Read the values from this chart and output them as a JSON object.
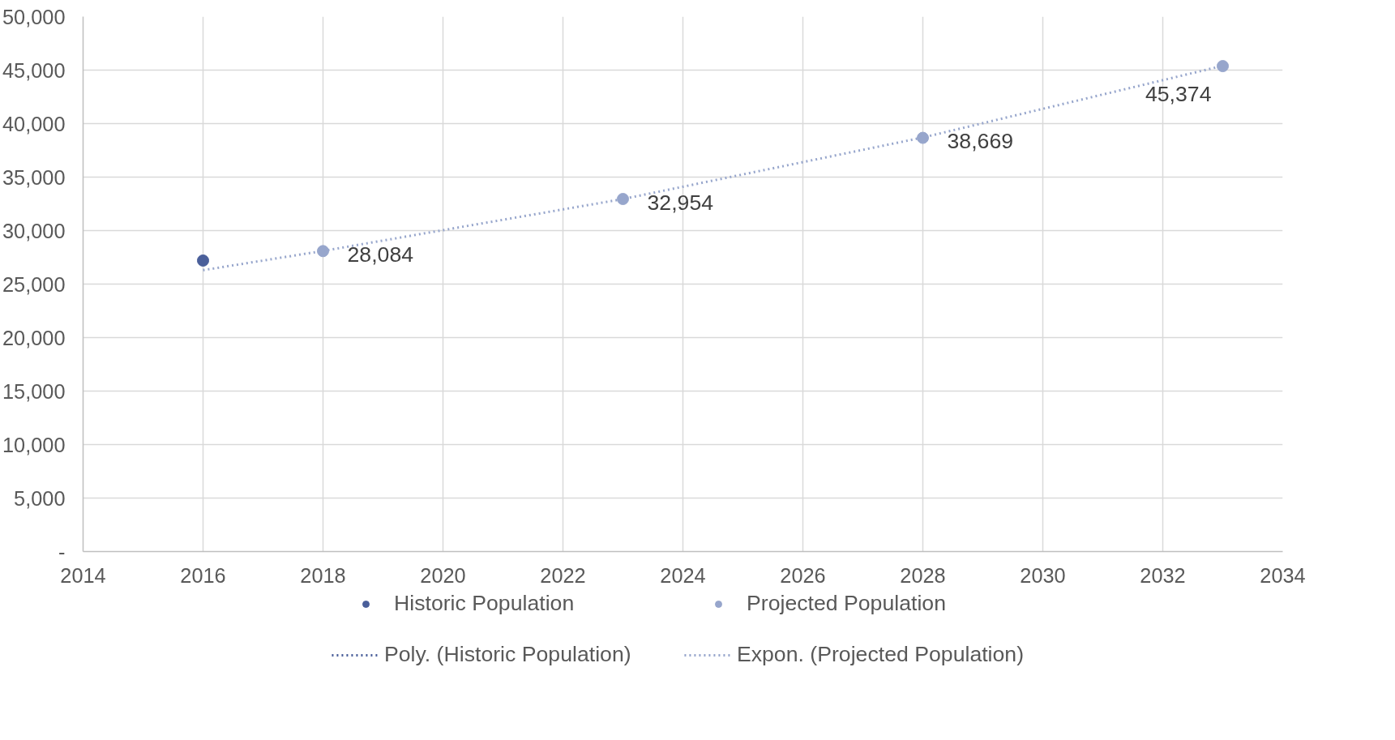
{
  "chart_data": {
    "type": "scatter",
    "series": [
      {
        "name": "Historic Population",
        "color": "#4a5f9a",
        "x": [
          2016
        ],
        "values": [
          27200
        ]
      },
      {
        "name": "Projected Population",
        "color": "#97a6cc",
        "x": [
          2018,
          2023,
          2028,
          2033
        ],
        "values": [
          28084,
          32954,
          38669,
          45374
        ],
        "value_labels": [
          "28,084",
          "32,954",
          "38,669",
          "45,374"
        ]
      },
      {
        "name": "Poly. (Historic Population)",
        "type": "line",
        "line_style": "dotted",
        "marker": "none",
        "color": "#4a5f9a"
      },
      {
        "name": "Expon. (Projected Population)",
        "type": "line",
        "line_style": "dotted",
        "marker": "none",
        "color": "#97a6cc",
        "x": [
          2016,
          2018,
          2023,
          2028,
          2033
        ],
        "values": [
          26300,
          28100,
          32950,
          38700,
          45400
        ]
      }
    ],
    "xlim": [
      2014,
      2034
    ],
    "xticks": [
      2014,
      2016,
      2018,
      2020,
      2022,
      2024,
      2026,
      2028,
      2030,
      2032,
      2034
    ],
    "ylim": [
      0,
      50000
    ],
    "yticks": [
      {
        "value": 0,
        "label": "-"
      },
      {
        "value": 5000,
        "label": "5,000"
      },
      {
        "value": 10000,
        "label": "10,000"
      },
      {
        "value": 15000,
        "label": "15,000"
      },
      {
        "value": 20000,
        "label": "20,000"
      },
      {
        "value": 25000,
        "label": "25,000"
      },
      {
        "value": 30000,
        "label": "30,000"
      },
      {
        "value": 35000,
        "label": "35,000"
      },
      {
        "value": 40000,
        "label": "40,000"
      },
      {
        "value": 45000,
        "label": "45,000"
      },
      {
        "value": 50000,
        "label": "50,000"
      }
    ],
    "grid": true,
    "legend": "bottom",
    "marker": "circle"
  }
}
